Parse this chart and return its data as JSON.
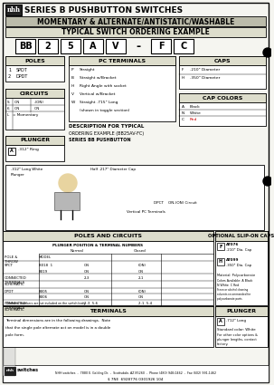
{
  "title": "SERIES B PUSHBUTTON SWITCHES",
  "subtitle": "MOMENTARY & ALTERNATE/ANTISTATIC/WASHABLE",
  "section1": "TYPICAL SWITCH ORDERING EXAMPLE",
  "ordering_boxes": [
    "BB",
    "2",
    "5",
    "A",
    "V",
    "-",
    "F",
    "C"
  ],
  "bg_color": "#f5f5f0",
  "dark_bg": "#222222",
  "gray_bg": "#bbbbaa",
  "light_gray": "#ddddcc",
  "footer_text": "NHH switches  -  7880 E. Gelding Dr.  -  Scottsdale, AZ 85260  -  Phone (480) 948-0462  -  Fax (602) 991-1462",
  "barcode_text": "$ 7NE  6928776 0301926 104"
}
